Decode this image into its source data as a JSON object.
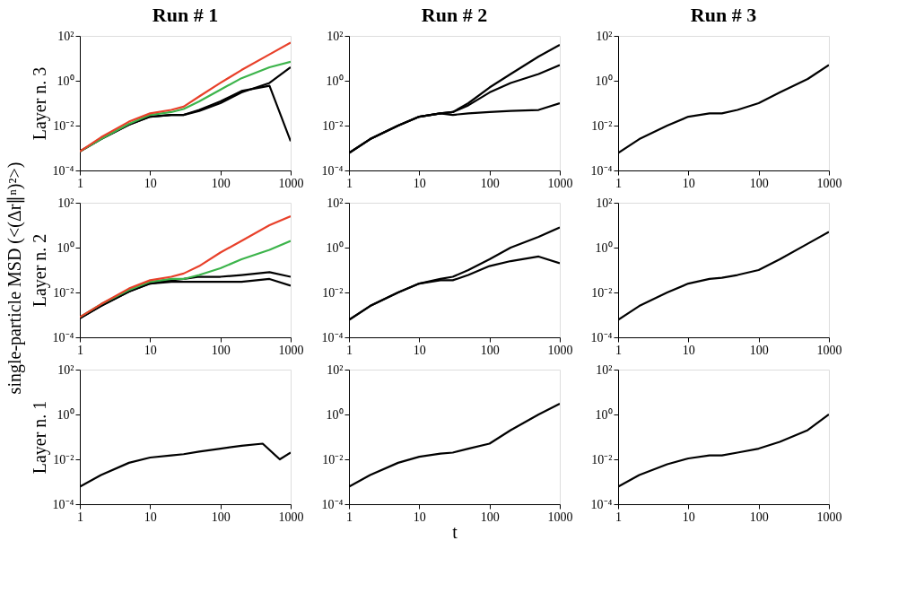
{
  "chart_data": [
    {
      "type": "line",
      "title": "Run  # 1",
      "ylabel": "Layer  n. 3",
      "log": "xy",
      "xlim": [
        1,
        1000
      ],
      "ylim": [
        0.0001,
        100
      ],
      "xticks": [
        1,
        10,
        100,
        1000
      ],
      "yticks": [
        {
          "value": 0.0001,
          "label": "10⁻⁴"
        },
        {
          "value": 0.01,
          "label": "10⁻²"
        },
        {
          "value": 1,
          "label": "10⁰"
        },
        {
          "value": 100,
          "label": "10²"
        }
      ],
      "x": [
        1,
        2,
        5,
        10,
        20,
        30,
        50,
        100,
        200,
        500,
        1000
      ],
      "series": [
        {
          "color": "#000000",
          "values": [
            0.0007,
            0.0025,
            0.011,
            0.025,
            0.03,
            0.03,
            0.045,
            0.1,
            0.3,
            0.8,
            4
          ]
        },
        {
          "color": "#000000",
          "values": [
            0.0007,
            0.0025,
            0.011,
            0.025,
            0.03,
            0.03,
            0.05,
            0.12,
            0.35,
            0.6,
            0.002
          ]
        },
        {
          "color": "#3cb44b",
          "values": [
            0.0007,
            0.0025,
            0.012,
            0.03,
            0.04,
            0.055,
            0.12,
            0.4,
            1.3,
            4,
            7
          ]
        },
        {
          "color": "#e8402a",
          "values": [
            0.0007,
            0.003,
            0.015,
            0.035,
            0.05,
            0.07,
            0.2,
            0.8,
            3,
            15,
            50
          ]
        }
      ]
    },
    {
      "type": "line",
      "title": "Run  # 2",
      "log": "xy",
      "xlim": [
        1,
        1000
      ],
      "ylim": [
        0.0001,
        100
      ],
      "xticks": [
        1,
        10,
        100,
        1000
      ],
      "yticks": [
        {
          "value": 0.0001,
          "label": "10⁻⁴"
        },
        {
          "value": 0.01,
          "label": "10⁻²"
        },
        {
          "value": 1,
          "label": "10⁰"
        },
        {
          "value": 100,
          "label": "10²"
        }
      ],
      "x": [
        1,
        2,
        5,
        10,
        20,
        30,
        50,
        100,
        200,
        500,
        1000
      ],
      "series": [
        {
          "color": "#000000",
          "values": [
            0.0006,
            0.0025,
            0.01,
            0.025,
            0.035,
            0.04,
            0.1,
            0.5,
            2,
            12,
            40
          ]
        },
        {
          "color": "#000000",
          "values": [
            0.0006,
            0.0025,
            0.01,
            0.025,
            0.035,
            0.04,
            0.08,
            0.3,
            0.8,
            2,
            5
          ]
        },
        {
          "color": "#000000",
          "values": [
            0.0006,
            0.0025,
            0.01,
            0.025,
            0.035,
            0.03,
            0.035,
            0.04,
            0.045,
            0.05,
            0.1
          ]
        }
      ]
    },
    {
      "type": "line",
      "title": "Run  # 3",
      "log": "xy",
      "xlim": [
        1,
        1000
      ],
      "ylim": [
        0.0001,
        100
      ],
      "xticks": [
        1,
        10,
        100,
        1000
      ],
      "yticks": [
        {
          "value": 0.0001,
          "label": "10⁻⁴"
        },
        {
          "value": 0.01,
          "label": "10⁻²"
        },
        {
          "value": 1,
          "label": "10⁰"
        },
        {
          "value": 100,
          "label": "10²"
        }
      ],
      "x": [
        1,
        2,
        5,
        10,
        20,
        30,
        50,
        100,
        200,
        500,
        1000
      ],
      "series": [
        {
          "color": "#000000",
          "values": [
            0.0006,
            0.0025,
            0.01,
            0.025,
            0.035,
            0.035,
            0.05,
            0.1,
            0.3,
            1.2,
            5
          ]
        }
      ]
    },
    {
      "type": "line",
      "ylabel": "Layer  n. 2",
      "annotations": [
        "single-particle  MSD  (<(Δr∥ⁿ)²>)"
      ],
      "log": "xy",
      "xlim": [
        1,
        1000
      ],
      "ylim": [
        0.0001,
        100
      ],
      "xticks": [
        1,
        10,
        100,
        1000
      ],
      "yticks": [
        {
          "value": 0.0001,
          "label": "10⁻⁴"
        },
        {
          "value": 0.01,
          "label": "10⁻²"
        },
        {
          "value": 1,
          "label": "10⁰"
        },
        {
          "value": 100,
          "label": "10²"
        }
      ],
      "x": [
        1,
        2,
        5,
        10,
        20,
        30,
        50,
        100,
        200,
        500,
        1000
      ],
      "series": [
        {
          "color": "#000000",
          "values": [
            0.0007,
            0.0025,
            0.011,
            0.025,
            0.035,
            0.04,
            0.05,
            0.05,
            0.06,
            0.08,
            0.05
          ]
        },
        {
          "color": "#000000",
          "values": [
            0.0007,
            0.0025,
            0.011,
            0.025,
            0.03,
            0.03,
            0.03,
            0.03,
            0.03,
            0.04,
            0.02
          ]
        },
        {
          "color": "#3cb44b",
          "values": [
            0.0008,
            0.003,
            0.013,
            0.03,
            0.04,
            0.04,
            0.06,
            0.12,
            0.3,
            0.8,
            2
          ]
        },
        {
          "color": "#e8402a",
          "values": [
            0.0008,
            0.003,
            0.015,
            0.035,
            0.05,
            0.07,
            0.15,
            0.6,
            2,
            10,
            25
          ]
        }
      ]
    },
    {
      "type": "line",
      "log": "xy",
      "xlim": [
        1,
        1000
      ],
      "ylim": [
        0.0001,
        100
      ],
      "xticks": [
        1,
        10,
        100,
        1000
      ],
      "yticks": [
        {
          "value": 0.0001,
          "label": "10⁻⁴"
        },
        {
          "value": 0.01,
          "label": "10⁻²"
        },
        {
          "value": 1,
          "label": "10⁰"
        },
        {
          "value": 100,
          "label": "10²"
        }
      ],
      "x": [
        1,
        2,
        5,
        10,
        20,
        30,
        50,
        100,
        200,
        500,
        1000
      ],
      "series": [
        {
          "color": "#000000",
          "values": [
            0.0006,
            0.0025,
            0.01,
            0.025,
            0.04,
            0.05,
            0.1,
            0.3,
            1,
            3,
            8
          ]
        },
        {
          "color": "#000000",
          "values": [
            0.0006,
            0.0025,
            0.01,
            0.025,
            0.035,
            0.035,
            0.06,
            0.15,
            0.25,
            0.4,
            0.2
          ]
        }
      ]
    },
    {
      "type": "line",
      "log": "xy",
      "xlim": [
        1,
        1000
      ],
      "ylim": [
        0.0001,
        100
      ],
      "xticks": [
        1,
        10,
        100,
        1000
      ],
      "yticks": [
        {
          "value": 0.0001,
          "label": "10⁻⁴"
        },
        {
          "value": 0.01,
          "label": "10⁻²"
        },
        {
          "value": 1,
          "label": "10⁰"
        },
        {
          "value": 100,
          "label": "10²"
        }
      ],
      "x": [
        1,
        2,
        5,
        10,
        20,
        30,
        50,
        100,
        200,
        500,
        1000
      ],
      "series": [
        {
          "color": "#000000",
          "values": [
            0.0006,
            0.0025,
            0.01,
            0.025,
            0.04,
            0.045,
            0.06,
            0.1,
            0.3,
            1.5,
            5
          ]
        }
      ]
    },
    {
      "type": "line",
      "ylabel": "Layer  n. 1",
      "log": "xy",
      "xlim": [
        1,
        1000
      ],
      "ylim": [
        0.0001,
        100
      ],
      "xticks": [
        1,
        10,
        100,
        1000
      ],
      "yticks": [
        {
          "value": 0.0001,
          "label": "10⁻⁴"
        },
        {
          "value": 0.01,
          "label": "10⁻²"
        },
        {
          "value": 1,
          "label": "10⁰"
        },
        {
          "value": 100,
          "label": "10²"
        }
      ],
      "x": [
        1,
        2,
        5,
        10,
        20,
        30,
        50,
        100,
        200,
        400,
        700,
        1000
      ],
      "series": [
        {
          "color": "#000000",
          "values": [
            0.0006,
            0.002,
            0.007,
            0.012,
            0.015,
            0.017,
            0.022,
            0.03,
            0.04,
            0.05,
            0.01,
            0.02
          ]
        }
      ]
    },
    {
      "type": "line",
      "xlabel": "t",
      "log": "xy",
      "xlim": [
        1,
        1000
      ],
      "ylim": [
        0.0001,
        100
      ],
      "xticks": [
        1,
        10,
        100,
        1000
      ],
      "yticks": [
        {
          "value": 0.0001,
          "label": "10⁻⁴"
        },
        {
          "value": 0.01,
          "label": "10⁻²"
        },
        {
          "value": 1,
          "label": "10⁰"
        },
        {
          "value": 100,
          "label": "10²"
        }
      ],
      "x": [
        1,
        2,
        5,
        10,
        20,
        30,
        50,
        100,
        200,
        500,
        1000
      ],
      "series": [
        {
          "color": "#000000",
          "values": [
            0.0006,
            0.002,
            0.007,
            0.013,
            0.018,
            0.02,
            0.03,
            0.05,
            0.2,
            1,
            3
          ]
        }
      ]
    },
    {
      "type": "line",
      "log": "xy",
      "xlim": [
        1,
        1000
      ],
      "ylim": [
        0.0001,
        100
      ],
      "xticks": [
        1,
        10,
        100,
        1000
      ],
      "yticks": [
        {
          "value": 0.0001,
          "label": "10⁻⁴"
        },
        {
          "value": 0.01,
          "label": "10⁻²"
        },
        {
          "value": 1,
          "label": "10⁰"
        },
        {
          "value": 100,
          "label": "10²"
        }
      ],
      "x": [
        1,
        2,
        5,
        10,
        20,
        30,
        50,
        100,
        200,
        500,
        1000
      ],
      "series": [
        {
          "color": "#000000",
          "values": [
            0.0006,
            0.002,
            0.006,
            0.011,
            0.015,
            0.015,
            0.02,
            0.03,
            0.06,
            0.2,
            1
          ]
        }
      ]
    }
  ]
}
